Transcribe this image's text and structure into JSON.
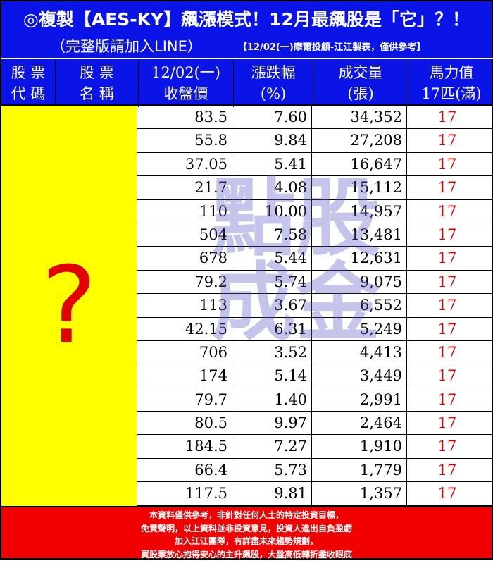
{
  "header": {
    "title": "複製【AES-KY】飆漲模式！12月最飆股是「它」？！",
    "icon": "target-icon",
    "subtitle": "（完整版請加入LINE）",
    "note": "【12/02(一)摩爾投顧-江江製表，僅供參考】"
  },
  "columns": [
    [
      "股 票",
      "代 碼"
    ],
    [
      "股 票",
      "名 稱"
    ],
    [
      "12/02(一)",
      "收盤價"
    ],
    [
      "漲跌幅",
      "(%)"
    ],
    [
      "成交量",
      "(張)"
    ],
    [
      "馬力值",
      "17匹(滿)"
    ]
  ],
  "hidden_mark": "?",
  "watermark": "點股成金",
  "rows": [
    [
      "83.5",
      "7.60",
      "34,352",
      "17"
    ],
    [
      "55.8",
      "9.84",
      "27,208",
      "17"
    ],
    [
      "37.05",
      "5.41",
      "16,647",
      "17"
    ],
    [
      "21.7",
      "4.08",
      "15,112",
      "17"
    ],
    [
      "110",
      "10.00",
      "14,957",
      "17"
    ],
    [
      "504",
      "7.58",
      "13,481",
      "17"
    ],
    [
      "678",
      "5.44",
      "12,631",
      "17"
    ],
    [
      "79.2",
      "5.74",
      "9,075",
      "17"
    ],
    [
      "113",
      "3.67",
      "6,552",
      "17"
    ],
    [
      "42.15",
      "6.31",
      "5,249",
      "17"
    ],
    [
      "706",
      "3.52",
      "4,413",
      "17"
    ],
    [
      "174",
      "5.14",
      "3,449",
      "17"
    ],
    [
      "79.7",
      "1.40",
      "2,991",
      "17"
    ],
    [
      "80.5",
      "9.97",
      "2,464",
      "17"
    ],
    [
      "184.5",
      "7.27",
      "1,910",
      "17"
    ],
    [
      "66.4",
      "5.73",
      "1,779",
      "17"
    ],
    [
      "117.5",
      "9.81",
      "1,357",
      "17"
    ]
  ],
  "footer": [
    "本資料僅供參考，非針對任何人士的特定投資目標，",
    "免責聲明，以上資料並非投資意見，投資人進出自負盈虧",
    "加入江江團隊，有詳盡未來趨勢規劃，",
    "買股票放心抱得安心的主升飆股，大盤高低轉折盡收眼底"
  ],
  "colors": {
    "header_bg": "#0a14e6",
    "hidden_bg": "#ffff00",
    "accent_red": "#e00000",
    "footer_bg": "#f00000"
  }
}
